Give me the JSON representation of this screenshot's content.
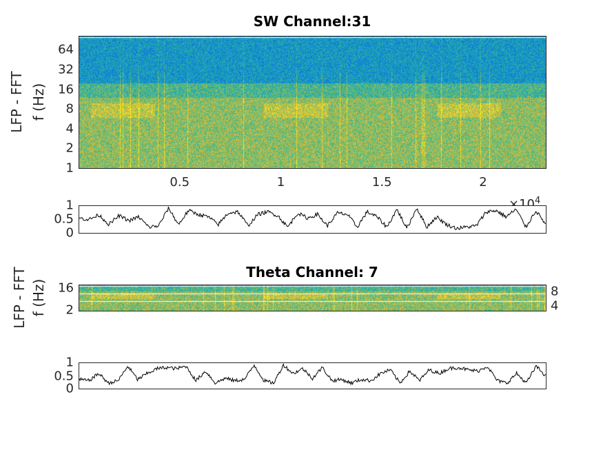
{
  "chart_data": [
    {
      "type": "heatmap",
      "title": "SW Channel:31",
      "ylabel_line1": "LFP - FFT",
      "ylabel_line2": "f (Hz)",
      "yscale": "log",
      "yticks": [
        "64",
        "32",
        "16",
        "8",
        "4",
        "2",
        "1"
      ],
      "ytick_values": [
        64,
        32,
        16,
        8,
        4,
        2,
        1
      ],
      "ylim": [
        1,
        100
      ],
      "xticks": [
        "0.5",
        "1",
        "1.5",
        "2"
      ],
      "xtick_values": [
        0.5,
        1,
        1.5,
        2
      ],
      "xlim": [
        0,
        2.31
      ],
      "x_exponent_label": "×10",
      "x_exponent_power": "4",
      "colormap": "parula",
      "note": "power high (yellow) below ~12 Hz, theta band ~8 Hz, low (blue) above 16 Hz"
    },
    {
      "type": "line",
      "ylim": [
        0,
        1
      ],
      "yticks": [
        "1",
        "0.5",
        "0"
      ],
      "ytick_values": [
        1,
        0.5,
        0
      ],
      "xlim": [
        0,
        2.31
      ],
      "values": [
        0.55,
        0.5,
        0.68,
        0.3,
        0.65,
        0.45,
        0.6,
        0.2,
        0.25,
        0.95,
        0.3,
        0.85,
        0.7,
        0.6,
        0.3,
        0.75,
        0.8,
        0.25,
        0.7,
        0.8,
        0.65,
        0.2,
        0.75,
        0.55,
        0.7,
        0.25,
        0.75,
        0.7,
        0.2,
        0.8,
        0.6,
        0.2,
        0.9,
        0.15,
        0.95,
        0.2,
        0.6,
        0.3,
        0.15,
        0.2,
        0.25,
        0.8,
        0.85,
        0.6,
        0.9,
        0.2,
        0.85,
        0.3
      ]
    },
    {
      "type": "heatmap",
      "title": "Theta Channel: 7",
      "ylabel_line1": "LFP - FFT",
      "ylabel_line2": "f (Hz)",
      "yscale": "log",
      "yticks": [
        "16",
        "8",
        "4",
        "2"
      ],
      "ytick_values": [
        16,
        8,
        4,
        2
      ],
      "ylim": [
        2,
        20
      ],
      "colormap": "parula"
    },
    {
      "type": "line",
      "ylim": [
        0,
        1
      ],
      "yticks": [
        "1",
        "0.5",
        "0"
      ],
      "ytick_values": [
        1,
        0.5,
        0
      ],
      "xlim": [
        0,
        2.31
      ],
      "values": [
        0.35,
        0.3,
        0.6,
        0.2,
        0.3,
        0.9,
        0.35,
        0.6,
        0.8,
        0.85,
        0.8,
        0.9,
        0.3,
        0.7,
        0.2,
        0.4,
        0.3,
        0.35,
        0.95,
        0.3,
        0.2,
        0.95,
        0.6,
        0.8,
        0.4,
        0.85,
        0.3,
        0.35,
        0.2,
        0.35,
        0.3,
        0.6,
        0.75,
        0.2,
        0.7,
        0.3,
        0.75,
        0.6,
        0.8,
        0.85,
        0.75,
        0.7,
        0.9,
        0.3,
        0.2,
        0.6,
        0.2,
        0.9,
        0.5
      ]
    }
  ]
}
